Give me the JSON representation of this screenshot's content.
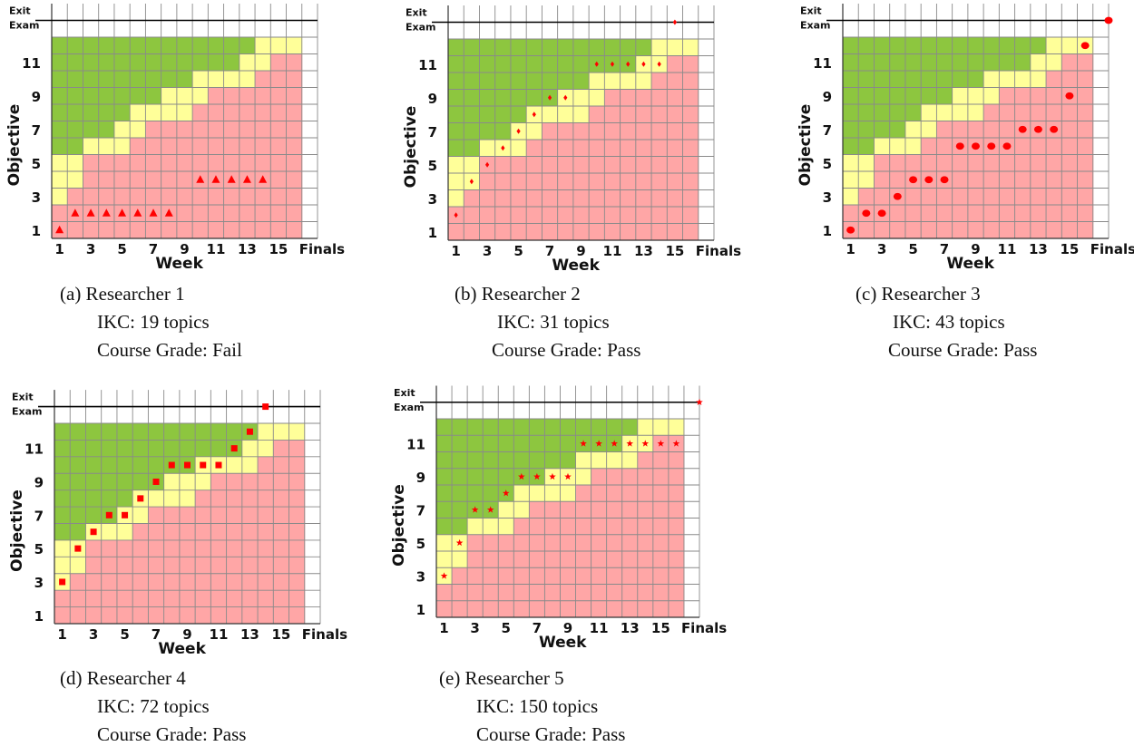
{
  "colors": {
    "green": "#8DC63F",
    "yellow": "#FFFF99",
    "red": "#FFA6A6",
    "marker": "#FF0000",
    "grid": "#8a8a8a"
  },
  "chart_data": [
    {
      "type": "scatter",
      "marker": "triangle",
      "xlabel": "Week",
      "ylabel": "Objective",
      "exit_label": [
        "Exit",
        "Exam"
      ],
      "xticks": [
        "1",
        "3",
        "5",
        "7",
        "9",
        "11",
        "13",
        "15",
        "Finals"
      ],
      "yticks": [
        "1",
        "3",
        "5",
        "7",
        "9",
        "11"
      ],
      "bands": {
        "green_lower": [
          5,
          5,
          6,
          6,
          7,
          8,
          8,
          9,
          9,
          10,
          10,
          10,
          11,
          12,
          12,
          12
        ],
        "red_upper": [
          2,
          3,
          5,
          5,
          5,
          6,
          7,
          7,
          7,
          8,
          9,
          9,
          9,
          10,
          11,
          11
        ]
      },
      "points": [
        [
          1,
          1
        ],
        [
          2,
          2
        ],
        [
          3,
          2
        ],
        [
          4,
          2
        ],
        [
          5,
          2
        ],
        [
          6,
          2
        ],
        [
          7,
          2
        ],
        [
          8,
          2
        ],
        [
          10,
          4
        ],
        [
          11,
          4
        ],
        [
          12,
          4
        ],
        [
          13,
          4
        ],
        [
          14,
          4
        ]
      ],
      "caption": {
        "title": "(a) Researcher 1",
        "ikc": "IKC: 19 topics",
        "grade": "Course Grade: Fail"
      }
    },
    {
      "type": "scatter",
      "marker": "diamond",
      "xlabel": "Week",
      "ylabel": "Objective",
      "exit_label": [
        "Exit",
        "Exam"
      ],
      "xticks": [
        "1",
        "3",
        "5",
        "7",
        "9",
        "11",
        "13",
        "15",
        "Finals"
      ],
      "yticks": [
        "1",
        "3",
        "5",
        "7",
        "9",
        "11"
      ],
      "bands": {
        "green_lower": [
          5,
          5,
          6,
          6,
          7,
          8,
          8,
          9,
          9,
          10,
          10,
          10,
          11,
          12,
          12,
          12
        ],
        "red_upper": [
          2,
          3,
          5,
          5,
          5,
          6,
          7,
          7,
          7,
          8,
          9,
          9,
          9,
          10,
          11,
          11
        ]
      },
      "points": [
        [
          1,
          2
        ],
        [
          2,
          4
        ],
        [
          3,
          5
        ],
        [
          4,
          6
        ],
        [
          5,
          7
        ],
        [
          6,
          8
        ],
        [
          7,
          9
        ],
        [
          8,
          9
        ],
        [
          10,
          11
        ],
        [
          11,
          11
        ],
        [
          12,
          11
        ],
        [
          13,
          11
        ],
        [
          14,
          11
        ],
        [
          15,
          "Exit Exam"
        ]
      ],
      "caption": {
        "title": "(b) Researcher 2",
        "ikc": "IKC: 31 topics",
        "grade": "Course Grade: Pass"
      }
    },
    {
      "type": "scatter",
      "marker": "circle",
      "xlabel": "Week",
      "ylabel": "Objective",
      "exit_label": [
        "Exit",
        "Exam"
      ],
      "xticks": [
        "1",
        "3",
        "5",
        "7",
        "9",
        "11",
        "13",
        "15",
        "Finals"
      ],
      "yticks": [
        "1",
        "3",
        "5",
        "7",
        "9",
        "11"
      ],
      "bands": {
        "green_lower": [
          5,
          5,
          6,
          6,
          7,
          8,
          8,
          9,
          9,
          10,
          10,
          10,
          11,
          12,
          12,
          12
        ],
        "red_upper": [
          2,
          3,
          5,
          5,
          5,
          6,
          7,
          7,
          7,
          8,
          9,
          9,
          9,
          10,
          11,
          11
        ]
      },
      "points": [
        [
          1,
          1
        ],
        [
          2,
          2
        ],
        [
          3,
          2
        ],
        [
          4,
          3
        ],
        [
          5,
          4
        ],
        [
          6,
          4
        ],
        [
          7,
          4
        ],
        [
          8,
          6
        ],
        [
          9,
          6
        ],
        [
          10,
          6
        ],
        [
          11,
          6
        ],
        [
          12,
          7
        ],
        [
          13,
          7
        ],
        [
          14,
          7
        ],
        [
          15,
          9
        ],
        [
          16,
          12
        ],
        [
          "Finals",
          "Exit Exam"
        ]
      ],
      "caption": {
        "title": "(c) Researcher 3",
        "ikc": "IKC: 43 topics",
        "grade": "Course Grade: Pass"
      }
    },
    {
      "type": "scatter",
      "marker": "square",
      "xlabel": "Week",
      "ylabel": "Objective",
      "exit_label": [
        "Exit",
        "Exam"
      ],
      "xticks": [
        "1",
        "3",
        "5",
        "7",
        "9",
        "11",
        "13",
        "15",
        "Finals"
      ],
      "yticks": [
        "1",
        "3",
        "5",
        "7",
        "9",
        "11"
      ],
      "bands": {
        "green_lower": [
          5,
          5,
          6,
          6,
          7,
          8,
          8,
          9,
          9,
          10,
          10,
          10,
          11,
          12,
          12,
          12
        ],
        "red_upper": [
          2,
          3,
          5,
          5,
          5,
          6,
          7,
          7,
          7,
          8,
          9,
          9,
          9,
          10,
          11,
          11
        ]
      },
      "points": [
        [
          1,
          3
        ],
        [
          2,
          5
        ],
        [
          3,
          6
        ],
        [
          4,
          7
        ],
        [
          5,
          7
        ],
        [
          6,
          8
        ],
        [
          7,
          9
        ],
        [
          8,
          10
        ],
        [
          9,
          10
        ],
        [
          10,
          10
        ],
        [
          11,
          10
        ],
        [
          12,
          11
        ],
        [
          13,
          12
        ],
        [
          14,
          "Exit Exam"
        ]
      ],
      "caption": {
        "title": "(d) Researcher 4",
        "ikc": "IKC: 72 topics",
        "grade": "Course Grade: Pass"
      }
    },
    {
      "type": "scatter",
      "marker": "star",
      "xlabel": "Week",
      "ylabel": "Objective",
      "exit_label": [
        "Exit",
        "Exam"
      ],
      "xticks": [
        "1",
        "3",
        "5",
        "7",
        "9",
        "11",
        "13",
        "15",
        "Finals"
      ],
      "yticks": [
        "1",
        "3",
        "5",
        "7",
        "9",
        "11"
      ],
      "bands": {
        "green_lower": [
          5,
          5,
          6,
          6,
          7,
          8,
          8,
          9,
          9,
          10,
          10,
          10,
          11,
          12,
          12,
          12
        ],
        "red_upper": [
          2,
          3,
          5,
          5,
          5,
          6,
          7,
          7,
          7,
          8,
          9,
          9,
          9,
          10,
          11,
          11
        ]
      },
      "points": [
        [
          1,
          3
        ],
        [
          2,
          5
        ],
        [
          3,
          7
        ],
        [
          4,
          7
        ],
        [
          5,
          8
        ],
        [
          6,
          9
        ],
        [
          7,
          9
        ],
        [
          8,
          9
        ],
        [
          9,
          9
        ],
        [
          10,
          11
        ],
        [
          11,
          11
        ],
        [
          12,
          11
        ],
        [
          13,
          11
        ],
        [
          14,
          11
        ],
        [
          15,
          11
        ],
        [
          16,
          11
        ],
        [
          "Finals",
          "Exit Exam"
        ]
      ],
      "caption": {
        "title": "(e) Researcher 5",
        "ikc": "IKC: 150 topics",
        "grade": "Course Grade: Pass"
      }
    }
  ]
}
